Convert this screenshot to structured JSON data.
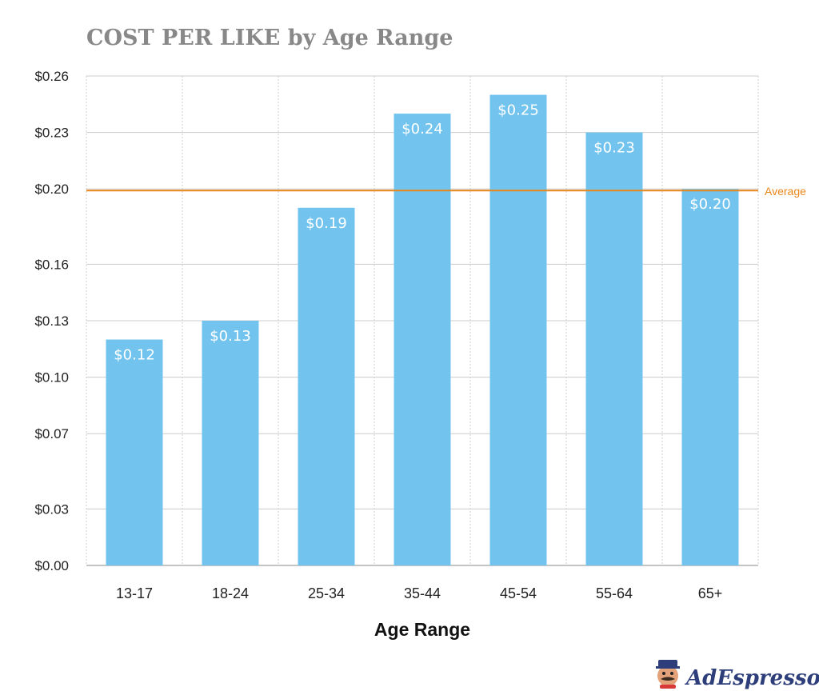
{
  "colors": {
    "bar": "#72c4ef",
    "average_line": "#e8861a",
    "brand": "#2d3e7a",
    "grid": "#cccccc"
  },
  "chart_data": {
    "type": "bar",
    "title": "COST PER LIKE by Age Range",
    "xlabel": "Age Range",
    "ylabel": "",
    "categories": [
      "13-17",
      "18-24",
      "25-34",
      "35-44",
      "45-54",
      "55-64",
      "65+"
    ],
    "values": [
      0.12,
      0.13,
      0.19,
      0.24,
      0.25,
      0.23,
      0.2
    ],
    "data_labels": [
      "$0.12",
      "$0.13",
      "$0.19",
      "$0.24",
      "$0.25",
      "$0.23",
      "$0.20"
    ],
    "ylim": [
      0,
      0.26
    ],
    "y_ticks": [
      0.0,
      0.03,
      0.07,
      0.1,
      0.13,
      0.16,
      0.2,
      0.23,
      0.26
    ],
    "y_tick_labels": [
      "$0.00",
      "$0.03",
      "$0.07",
      "$0.10",
      "$0.13",
      "$0.16",
      "$0.20",
      "$0.23",
      "$0.26"
    ],
    "average": {
      "value": 0.2,
      "label": "Average"
    },
    "grid": true
  },
  "branding": {
    "logo_text": "AdEspresso",
    "logo_icon": "mascot-icon"
  }
}
